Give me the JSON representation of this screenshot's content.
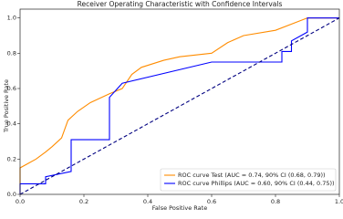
{
  "chart_data": {
    "type": "line",
    "title": "Receiver Operating Characteristic with Confidence Intervals",
    "x_label": "False Positive Rate",
    "y_label": "True Positive Rate",
    "xlim": [
      0,
      1
    ],
    "ylim": [
      0,
      1.05
    ],
    "xticks": [
      {
        "value": 0,
        "label": "0.0"
      },
      0.2,
      0.4,
      0.6,
      0.8,
      {
        "value": 1,
        "label": "1.0"
      }
    ],
    "yticks": [
      {
        "value": 0,
        "label": "0.0"
      },
      0.2,
      0.4,
      0.6,
      0.8,
      {
        "value": 1,
        "label": "1.0"
      }
    ],
    "legend": "lower right",
    "series": [
      {
        "name": "ROC curve Test (AUC = 0.74, 90% CI (0.68, 0.79))",
        "color": "#ff8c00",
        "x": [
          0,
          0,
          0.02,
          0.05,
          0.08,
          0.1,
          0.13,
          0.15,
          0.18,
          0.22,
          0.28,
          0.32,
          0.35,
          0.38,
          0.45,
          0.5,
          0.6,
          0.65,
          0.7,
          0.8,
          0.9,
          1
        ],
        "values": [
          0,
          0.15,
          0.17,
          0.2,
          0.24,
          0.27,
          0.32,
          0.42,
          0.47,
          0.52,
          0.57,
          0.6,
          0.68,
          0.72,
          0.76,
          0.78,
          0.8,
          0.86,
          0.9,
          0.93,
          1,
          1
        ]
      },
      {
        "name": "ROC curve Phillips (AUC = 0.60, 90% CI (0.44, 0.75))",
        "color": "#0000ff",
        "x": [
          0,
          0,
          0.08,
          0.08,
          0.16,
          0.16,
          0.28,
          0.28,
          0.32,
          0.6,
          0.82,
          0.82,
          0.85,
          0.85,
          0.9,
          0.9,
          1
        ],
        "values": [
          0,
          0.06,
          0.06,
          0.1,
          0.13,
          0.31,
          0.31,
          0.55,
          0.63,
          0.75,
          0.75,
          0.81,
          0.81,
          0.87,
          0.92,
          1,
          1
        ]
      },
      {
        "color": "#000080",
        "dashed": true,
        "x": [
          0,
          1
        ],
        "values": [
          0,
          1
        ]
      }
    ]
  }
}
